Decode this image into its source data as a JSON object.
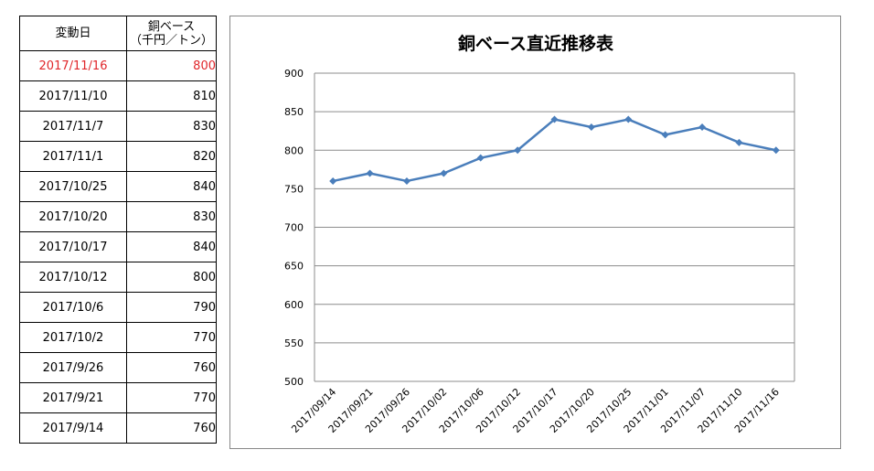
{
  "table": {
    "header": {
      "date": "変動日",
      "value_line1": "銅ベース",
      "value_line2": "（千円／トン）"
    },
    "rows": [
      {
        "date": "2017/11/16",
        "value": "800",
        "highlight": true
      },
      {
        "date": "2017/11/10",
        "value": "810",
        "highlight": false
      },
      {
        "date": "2017/11/7",
        "value": "830",
        "highlight": false
      },
      {
        "date": "2017/11/1",
        "value": "820",
        "highlight": false
      },
      {
        "date": "2017/10/25",
        "value": "840",
        "highlight": false
      },
      {
        "date": "2017/10/20",
        "value": "830",
        "highlight": false
      },
      {
        "date": "2017/10/17",
        "value": "840",
        "highlight": false
      },
      {
        "date": "2017/10/12",
        "value": "800",
        "highlight": false
      },
      {
        "date": "2017/10/6",
        "value": "790",
        "highlight": false
      },
      {
        "date": "2017/10/2",
        "value": "770",
        "highlight": false
      },
      {
        "date": "2017/9/26",
        "value": "760",
        "highlight": false
      },
      {
        "date": "2017/9/21",
        "value": "770",
        "highlight": false
      },
      {
        "date": "2017/9/14",
        "value": "760",
        "highlight": false
      }
    ],
    "highlight_color": "#e0262a"
  },
  "chart_data": {
    "type": "line",
    "title": "銅ベース直近推移表",
    "xlabel": "",
    "ylabel": "",
    "categories": [
      "2017/09/14",
      "2017/09/21",
      "2017/09/26",
      "2017/10/02",
      "2017/10/06",
      "2017/10/12",
      "2017/10/17",
      "2017/10/20",
      "2017/10/25",
      "2017/11/01",
      "2017/11/07",
      "2017/11/10",
      "2017/11/16"
    ],
    "series": [
      {
        "values": [
          760,
          770,
          760,
          770,
          790,
          800,
          840,
          830,
          840,
          820,
          830,
          810,
          800
        ],
        "color": "#4a7ebb"
      }
    ],
    "ylim": [
      500,
      900
    ],
    "yticks": [
      500,
      550,
      600,
      650,
      700,
      750,
      800,
      850,
      900
    ],
    "grid": "horizontal",
    "legend": "none",
    "marker": "diamond"
  }
}
